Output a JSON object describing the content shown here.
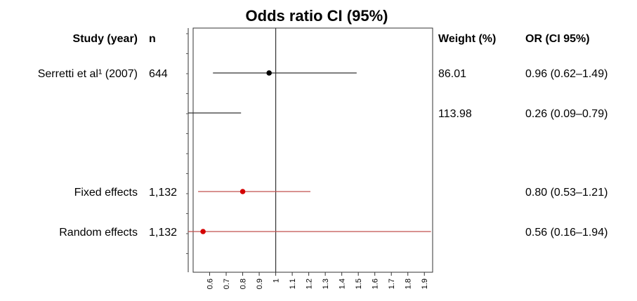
{
  "chart_data": {
    "type": "forest",
    "title": "Odds ratio CI (95%)",
    "columns": {
      "study": "Study (year)",
      "n": "n",
      "weight": "Weight (%)",
      "or": "OR (CI 95%)"
    },
    "x_ticks": [
      "0.6",
      "0.7",
      "0.8",
      "0.9",
      "1",
      "1.1",
      "1.2",
      "1.3",
      "1.4",
      "1.5",
      "1.6",
      "1.7",
      "1.8",
      "1.9"
    ],
    "xlim": [
      0.5,
      1.95
    ],
    "reference_line": 1,
    "rows": [
      {
        "label": "Serretti et al¹ (2007)",
        "n": "644",
        "weight": "86.01",
        "or_text": "0.96 (0.62–1.49)",
        "or": 0.96,
        "lo": 0.62,
        "hi": 1.49,
        "color": "#000000"
      },
      {
        "label": "",
        "n": "",
        "weight": "113.98",
        "or_text": "0.26 (0.09–0.79)",
        "or": 0.26,
        "lo": 0.09,
        "hi": 0.79,
        "color": "#000000"
      },
      {
        "label": "Fixed effects",
        "n": "1,132",
        "weight": "",
        "or_text": "0.80 (0.53–1.21)",
        "or": 0.8,
        "lo": 0.53,
        "hi": 1.21,
        "color": "#d40000"
      },
      {
        "label": "Random effects",
        "n": "1,132",
        "weight": "",
        "or_text": "0.56 (0.16–1.94)",
        "or": 0.56,
        "lo": 0.16,
        "hi": 1.94,
        "color": "#d40000"
      }
    ],
    "colors": {
      "study_line": "#333333",
      "summary_line": "#c0504d",
      "summary_point": "#d40000"
    }
  }
}
